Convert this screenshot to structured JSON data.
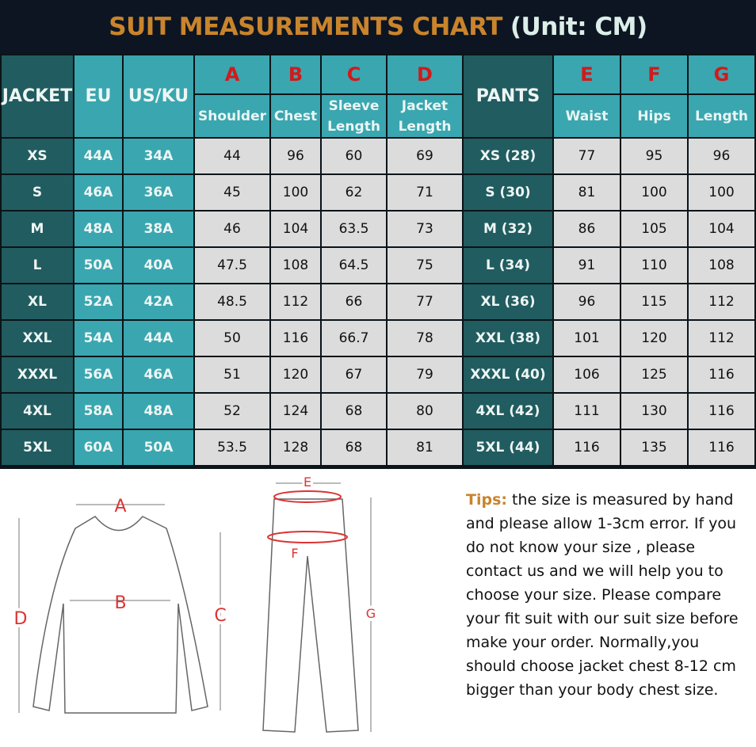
{
  "title": {
    "main": "SUIT MEASUREMENTS CHART",
    "unit": "(Unit: CM)"
  },
  "header": {
    "jacket": "JACKET",
    "eu": "EU",
    "us": "US/KU",
    "pants": "PANTS",
    "letters": [
      "A",
      "B",
      "C",
      "D",
      "E",
      "F",
      "G"
    ],
    "labels": [
      "Shoulder",
      "Chest",
      "Sleeve Length",
      "Jacket Length",
      "Waist",
      "Hips",
      "Length"
    ]
  },
  "rows": [
    [
      "XS",
      "44A",
      "34A",
      "44",
      "96",
      "60",
      "69",
      "XS (28)",
      "77",
      "95",
      "96"
    ],
    [
      "S",
      "46A",
      "36A",
      "45",
      "100",
      "62",
      "71",
      "S (30)",
      "81",
      "100",
      "100"
    ],
    [
      "M",
      "48A",
      "38A",
      "46",
      "104",
      "63.5",
      "73",
      "M (32)",
      "86",
      "105",
      "104"
    ],
    [
      "L",
      "50A",
      "40A",
      "47.5",
      "108",
      "64.5",
      "75",
      "L (34)",
      "91",
      "110",
      "108"
    ],
    [
      "XL",
      "52A",
      "42A",
      "48.5",
      "112",
      "66",
      "77",
      "XL (36)",
      "96",
      "115",
      "112"
    ],
    [
      "XXL",
      "54A",
      "44A",
      "50",
      "116",
      "66.7",
      "78",
      "XXL (38)",
      "101",
      "120",
      "112"
    ],
    [
      "XXXL",
      "56A",
      "46A",
      "51",
      "120",
      "67",
      "79",
      "XXXL (40)",
      "106",
      "125",
      "116"
    ],
    [
      "4XL",
      "58A",
      "48A",
      "52",
      "124",
      "68",
      "80",
      "4XL (42)",
      "111",
      "130",
      "116"
    ],
    [
      "5XL",
      "60A",
      "50A",
      "53.5",
      "128",
      "68",
      "81",
      "5XL (44)",
      "116",
      "135",
      "116"
    ]
  ],
  "tips": {
    "label": "Tips:",
    "text": " the size is measured by hand and please allow 1-3cm error. If you do not know your size , please contact us and we will help you to choose your size. Please compare your fit suit with our suit size before make your order. Normally,you should choose jacket chest 8-12 cm bigger than your body chest size."
  },
  "diagram": {
    "labels": [
      "A",
      "B",
      "C",
      "D",
      "E",
      "F",
      "G"
    ]
  },
  "colors": {
    "title": "#c9842c",
    "header": "#3aa6b0",
    "dark": "#215c60",
    "letter": "#d11a1a",
    "cell": "#dcdcdc"
  }
}
